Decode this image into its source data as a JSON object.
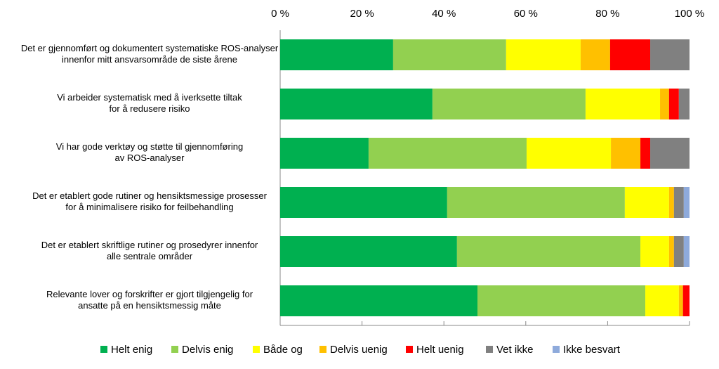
{
  "chart_data": {
    "type": "stacked-bar-horizontal",
    "categories": [
      "Det er gjennomført og dokumentert systematiske ROS-analyser\ninnenfor mitt ansvarsområde de siste årene",
      "Vi arbeider systematisk med å iverksette tiltak\nfor å redusere risiko",
      "Vi har gode verktøy og støtte til gjennomføring\nav ROS-analyser",
      "Det er etablert gode rutiner og hensiktsmessige prosesser\nfor å minimalisere risiko for feilbehandling",
      "Det er etablert skriftlige rutiner og prosedyrer innenfor\nalle sentrale områder",
      "Relevante lover og forskrifter er gjort tilgjengelig for\nansatte på en hensiktsmessig måte"
    ],
    "series": [
      {
        "name": "Helt enig",
        "color": "#00b050",
        "values": [
          27.6,
          37.2,
          21.6,
          40.8,
          43.2,
          48.2
        ]
      },
      {
        "name": "Delvis enig",
        "color": "#92d050",
        "values": [
          27.6,
          37.4,
          38.6,
          43.4,
          44.8,
          41.0
        ]
      },
      {
        "name": "Både og",
        "color": "#ffff00",
        "values": [
          18.2,
          18.2,
          20.6,
          10.8,
          7.0,
          8.2
        ]
      },
      {
        "name": "Delvis uenig",
        "color": "#ffc000",
        "values": [
          7.2,
          2.2,
          7.2,
          1.2,
          1.2,
          1.0
        ]
      },
      {
        "name": "Helt uenig",
        "color": "#ff0000",
        "values": [
          9.8,
          2.4,
          2.4,
          0,
          0,
          1.6
        ]
      },
      {
        "name": "Vet ikke",
        "color": "#808080",
        "values": [
          9.6,
          2.6,
          9.6,
          2.4,
          2.4,
          0
        ]
      },
      {
        "name": "Ikke besvart",
        "color": "#8eaadb",
        "values": [
          0,
          0,
          0,
          1.4,
          1.4,
          0
        ]
      }
    ],
    "xlim": [
      0,
      100
    ],
    "xticks": [
      {
        "value": 0,
        "label": "0 %"
      },
      {
        "value": 20,
        "label": "20 %"
      },
      {
        "value": 40,
        "label": "40 %"
      },
      {
        "value": 60,
        "label": "60 %"
      },
      {
        "value": 80,
        "label": "80 %"
      },
      {
        "value": 100,
        "label": "100 %"
      }
    ]
  }
}
